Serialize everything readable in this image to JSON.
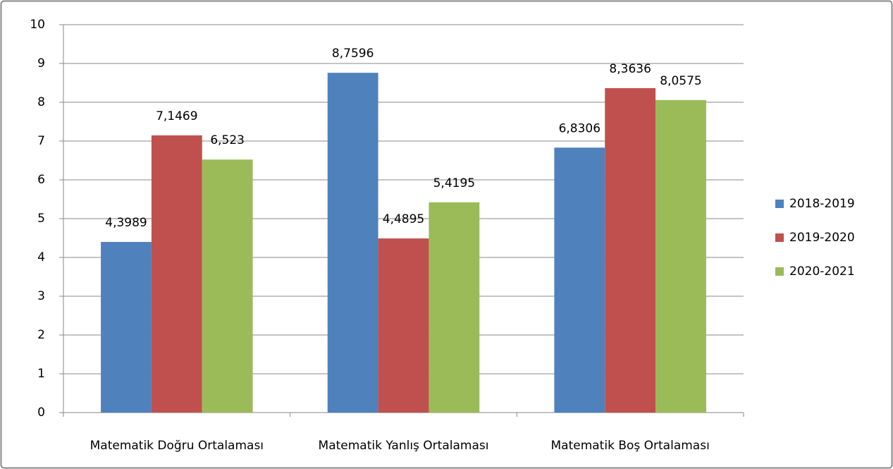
{
  "chart_data": {
    "type": "bar",
    "categories": [
      "Matematik Doğru Ortalaması",
      "Matematik Yanlış Ortalaması",
      "Matematik Boş Ortalaması"
    ],
    "series": [
      {
        "name": "2018-2019",
        "color": "#4f81bd",
        "values": [
          4.3989,
          8.7596,
          6.8306
        ],
        "value_labels": [
          "4,3989",
          "8,7596",
          "6,8306"
        ]
      },
      {
        "name": "2019-2020",
        "color": "#c0504d",
        "values": [
          7.1469,
          4.4895,
          8.3636
        ],
        "value_labels": [
          "7,1469",
          "4,4895",
          "8,3636"
        ]
      },
      {
        "name": "2020-2021",
        "color": "#9bbb59",
        "values": [
          6.523,
          5.4195,
          8.0575
        ],
        "value_labels": [
          "6,523",
          "5,4195",
          "8,0575"
        ]
      }
    ],
    "ylim": [
      0,
      10
    ],
    "yticks": [
      0,
      1,
      2,
      3,
      4,
      5,
      6,
      7,
      8,
      9,
      10
    ],
    "grid": true,
    "legend": "right"
  }
}
